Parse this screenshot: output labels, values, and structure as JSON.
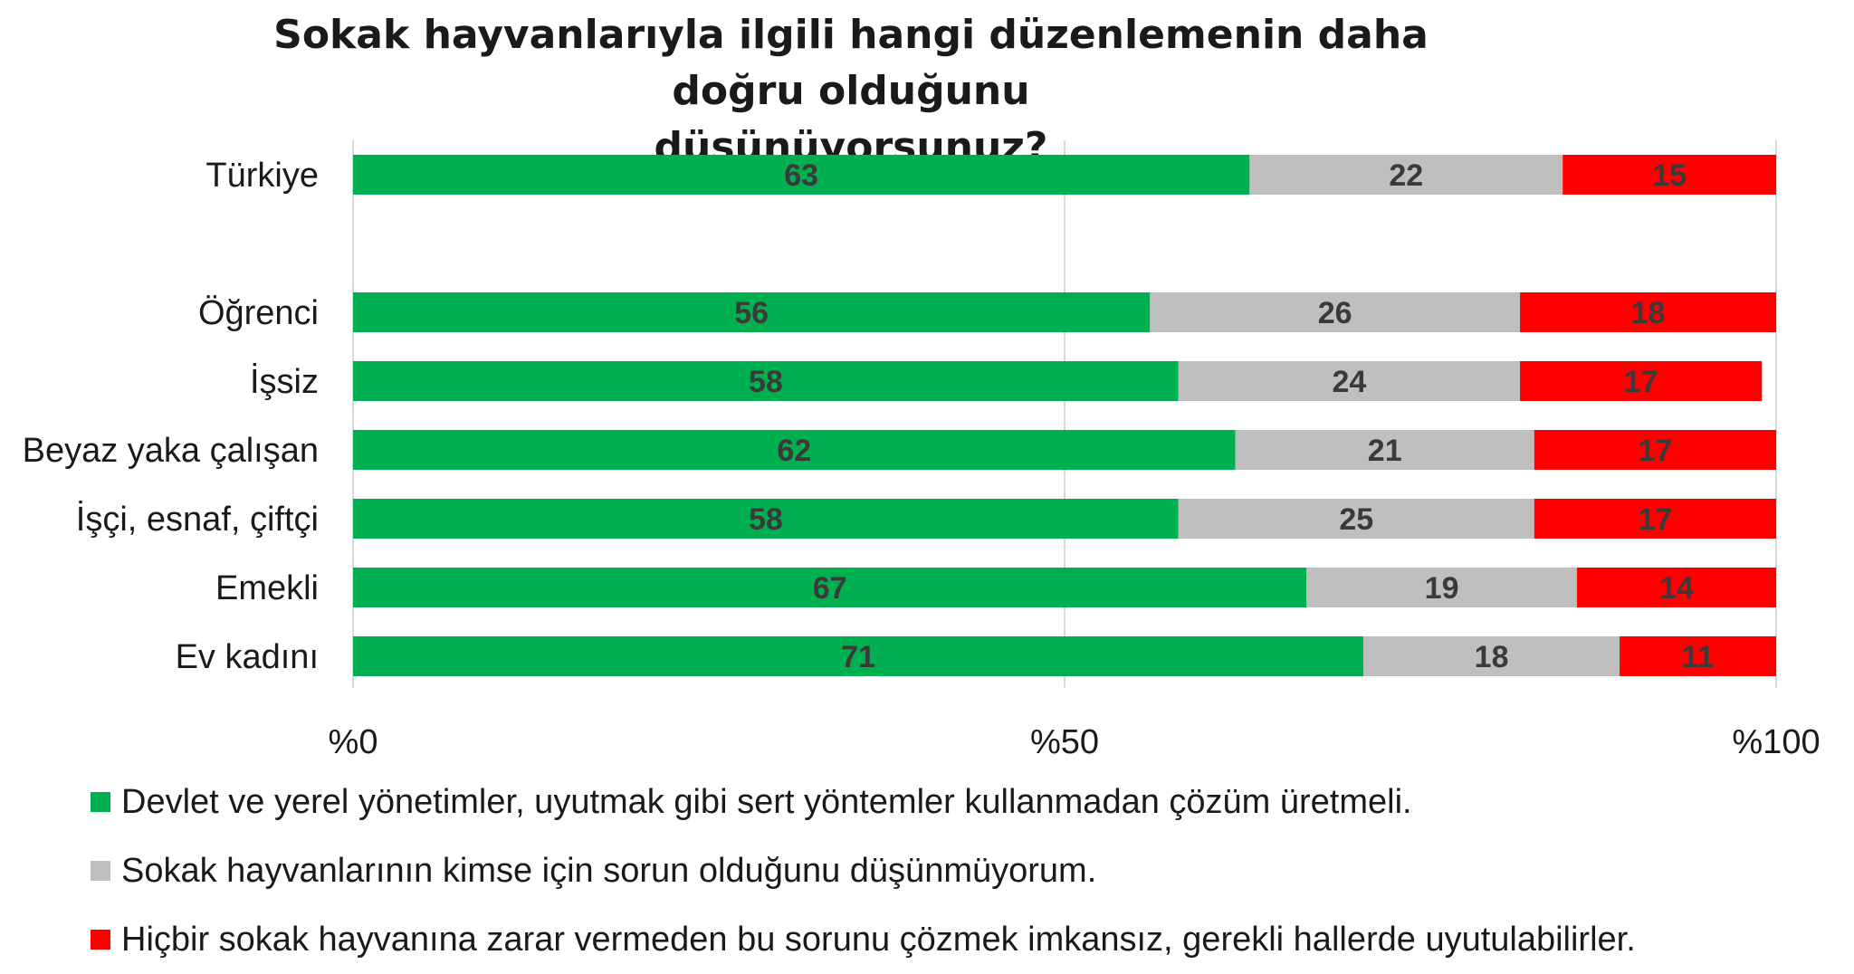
{
  "chart_data": {
    "type": "bar",
    "orientation": "horizontal",
    "stacked": true,
    "title_lines": [
      "Sokak hayvanlarıyla ilgili hangi düzenlemenin daha doğru olduğunu",
      "düşünüyorsunuz?"
    ],
    "categories": [
      "Türkiye",
      "Öğrenci",
      "İşsiz",
      "Beyaz yaka çalışan",
      "İşçi, esnaf, çiftçi",
      "Emekli",
      "Ev kadını"
    ],
    "series": [
      {
        "name": "Devlet ve yerel yönetimler, uyutmak gibi sert yöntemler kullanmadan çözüm üretmeli.",
        "color": "#00b050",
        "values": [
          63,
          56,
          58,
          62,
          58,
          67,
          71
        ]
      },
      {
        "name": "Sokak hayvanlarının kimse için sorun olduğunu düşünmüyorum.",
        "color": "#bfbfbf",
        "values": [
          22,
          26,
          24,
          21,
          25,
          19,
          18
        ]
      },
      {
        "name": "Hiçbir sokak hayvanına zarar vermeden bu sorunu çözmek imkansız, gerekli hallerde uyutulabilirler.",
        "color": "#ff0000",
        "values": [
          15,
          18,
          17,
          17,
          17,
          14,
          11
        ]
      }
    ],
    "xlim": [
      0,
      100
    ],
    "xticks": [
      0,
      50,
      100
    ],
    "xtick_labels": [
      "%0",
      "%50",
      "%100"
    ],
    "gridlines": "vertical",
    "legend_position": "bottom"
  }
}
